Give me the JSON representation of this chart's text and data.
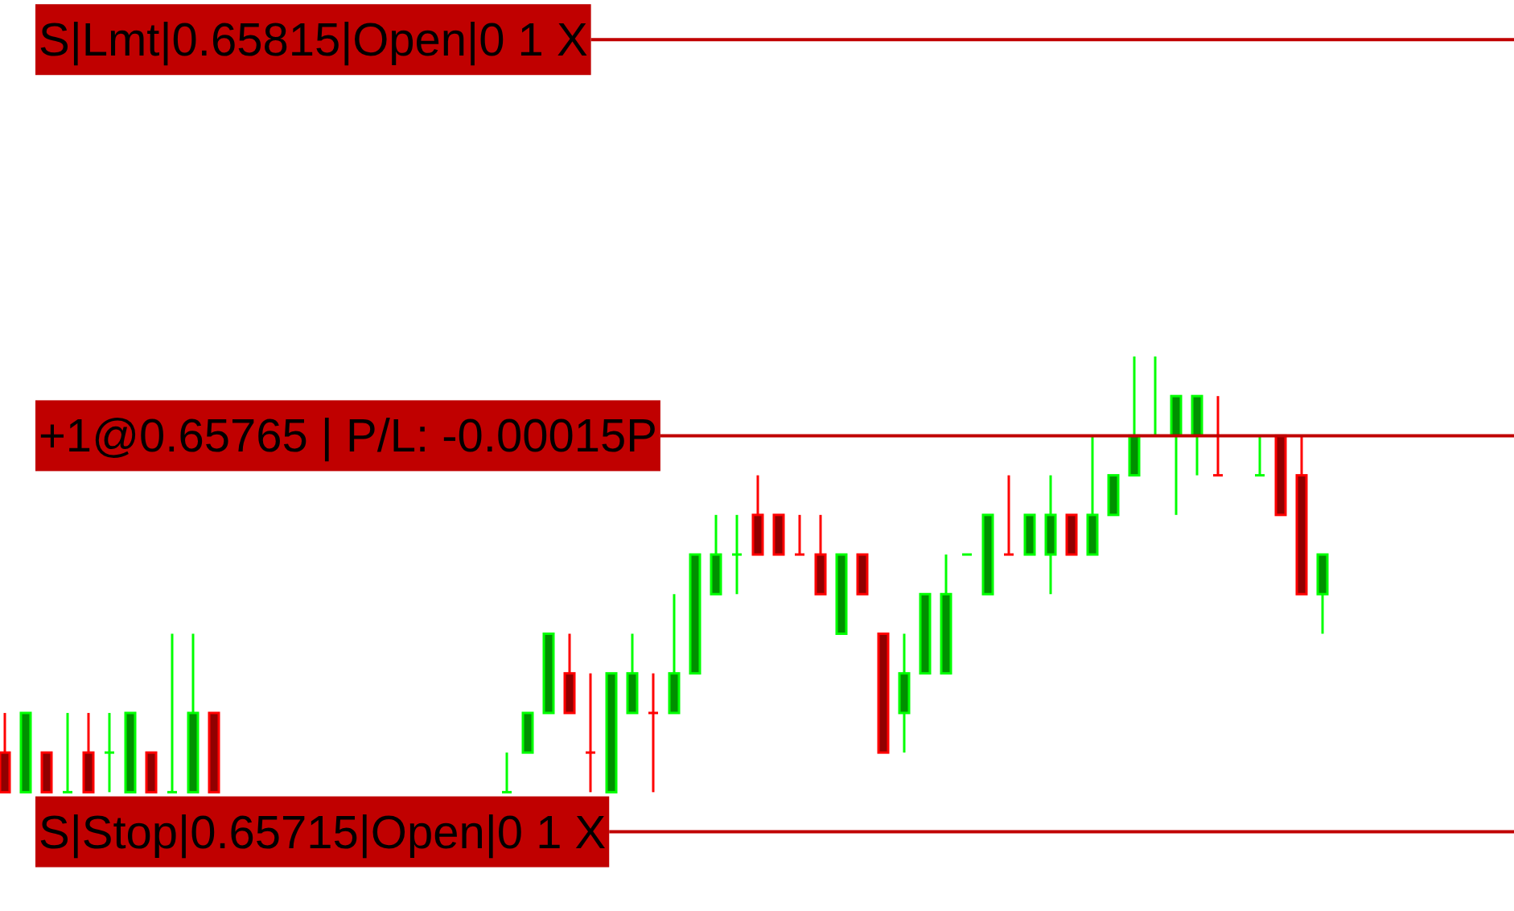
{
  "chart_data": {
    "type": "candlestick",
    "categories": [
      null,
      null,
      null,
      null,
      null,
      null,
      null,
      null,
      null,
      null,
      null,
      null,
      null,
      null,
      null,
      null,
      null,
      null,
      null,
      null,
      null,
      null,
      null,
      null,
      null,
      null,
      null,
      null,
      null,
      null,
      null,
      null,
      null,
      null,
      null,
      null,
      null,
      null,
      null,
      null,
      null,
      null,
      null,
      null,
      null,
      null,
      null,
      null,
      null,
      null,
      null,
      null,
      null,
      null,
      null,
      null,
      null,
      null,
      null,
      null,
      null,
      null,
      null,
      null
    ],
    "ohlc": [
      [
        0.65725,
        0.6573,
        0.6572,
        0.6572
      ],
      [
        0.6572,
        0.6573,
        0.6572,
        0.6573
      ],
      [
        0.65725,
        0.65725,
        0.6572,
        0.6572
      ],
      [
        0.6572,
        0.6573,
        0.6572,
        0.6572
      ],
      [
        0.65725,
        0.6573,
        0.6572,
        0.6572
      ],
      [
        0.65725,
        0.6573,
        0.6572,
        0.65725
      ],
      [
        0.6572,
        0.6573,
        0.6572,
        0.6573
      ],
      [
        0.65725,
        0.65725,
        0.6572,
        0.6572
      ],
      [
        0.6572,
        0.6574,
        0.6572,
        0.6572
      ],
      [
        0.6572,
        0.6574,
        0.6572,
        0.6573
      ],
      [
        0.6573,
        0.6573,
        0.6572,
        0.6572
      ],
      null,
      null,
      null,
      null,
      null,
      null,
      null,
      null,
      null,
      null,
      null,
      null,
      null,
      [
        0.6572,
        0.65725,
        0.6572,
        0.6572
      ],
      [
        0.65725,
        0.6573,
        0.65725,
        0.6573
      ],
      [
        0.6573,
        0.6574,
        0.6573,
        0.6574
      ],
      [
        0.65735,
        0.6574,
        0.6573,
        0.6573
      ],
      [
        0.65725,
        0.65735,
        0.6572,
        0.65725
      ],
      [
        0.6572,
        0.65735,
        0.6572,
        0.65735
      ],
      [
        0.6573,
        0.6574,
        0.6573,
        0.65735
      ],
      [
        0.6573,
        0.65735,
        0.6572,
        0.6573
      ],
      [
        0.6573,
        0.65745,
        0.6573,
        0.65735
      ],
      [
        0.65735,
        0.6575,
        0.65735,
        0.6575
      ],
      [
        0.65745,
        0.65755,
        0.65745,
        0.6575
      ],
      [
        0.6575,
        0.65755,
        0.65745,
        0.6575
      ],
      [
        0.65755,
        0.6576,
        0.6575,
        0.6575
      ],
      [
        0.65755,
        0.65755,
        0.6575,
        0.6575
      ],
      [
        0.6575,
        0.65755,
        0.6575,
        0.6575
      ],
      [
        0.6575,
        0.65755,
        0.65745,
        0.65745
      ],
      [
        0.6574,
        0.6575,
        0.6574,
        0.6575
      ],
      [
        0.6575,
        0.6575,
        0.65745,
        0.65745
      ],
      [
        0.6574,
        0.6574,
        0.65725,
        0.65725
      ],
      [
        0.6573,
        0.6574,
        0.65725,
        0.65735
      ],
      [
        0.65735,
        0.65745,
        0.65735,
        0.65745
      ],
      [
        0.65735,
        0.6575,
        0.65735,
        0.65745
      ],
      [
        0.6575,
        0.6575,
        0.6575,
        0.6575
      ],
      [
        0.65745,
        0.65755,
        0.65745,
        0.65755
      ],
      [
        0.6575,
        0.6576,
        0.6575,
        0.6575
      ],
      [
        0.6575,
        0.65755,
        0.6575,
        0.65755
      ],
      [
        0.6575,
        0.6576,
        0.65745,
        0.65755
      ],
      [
        0.65755,
        0.65755,
        0.6575,
        0.6575
      ],
      [
        0.6575,
        0.65765,
        0.6575,
        0.65755
      ],
      [
        0.65755,
        0.6576,
        0.65755,
        0.6576
      ],
      [
        0.6576,
        0.65775,
        0.6576,
        0.65765
      ],
      [
        0.65765,
        0.65775,
        0.65765,
        0.65765
      ],
      [
        0.65765,
        0.6577,
        0.65755,
        0.6577
      ],
      [
        0.65765,
        0.6577,
        0.6576,
        0.6577
      ],
      [
        0.6576,
        0.6577,
        0.6576,
        0.6576
      ],
      null,
      [
        0.6576,
        0.65765,
        0.6576,
        0.6576
      ],
      [
        0.65765,
        0.65765,
        0.65755,
        0.65755
      ],
      [
        0.6576,
        0.65765,
        0.65745,
        0.65745
      ],
      [
        0.65745,
        0.6575,
        0.6574,
        0.6575
      ]
    ],
    "colors": [
      "#ff0000",
      "#00ff00",
      "#ff0000",
      "#00ff00",
      "#ff0000",
      "#00ff00",
      "#00ff00",
      "#ff0000",
      "#00ff00",
      "#00ff00",
      "#ff0000",
      null,
      null,
      null,
      null,
      null,
      null,
      null,
      null,
      null,
      null,
      null,
      null,
      null,
      "#00ff00",
      "#00ff00",
      "#00ff00",
      "#ff0000",
      "#ff0000",
      "#00ff00",
      "#00ff00",
      "#ff0000",
      "#00ff00",
      "#00ff00",
      "#00ff00",
      "#00ff00",
      "#ff0000",
      "#ff0000",
      "#ff0000",
      "#ff0000",
      "#00ff00",
      "#ff0000",
      "#ff0000",
      "#00ff00",
      "#00ff00",
      "#00ff00",
      "#00ff00",
      "#00ff00",
      "#ff0000",
      "#00ff00",
      "#00ff00",
      "#ff0000",
      "#00ff00",
      "#00ff00",
      "#00ff00",
      "#00ff00",
      "#00ff00",
      "#00ff00",
      "#ff0000",
      null,
      "#00ff00",
      "#ff0000",
      "#ff0000",
      "#00ff00"
    ],
    "ylim": [
      0.65705,
      0.6582
    ],
    "ref_lines": [
      {
        "axis": "y",
        "value": 0.65815,
        "label": "S|Lmt|0.65815|Open|0 1 X",
        "color": "#c00000"
      },
      {
        "axis": "y",
        "value": 0.65765,
        "label": "+1@0.65765 | P/L: -0.00015P",
        "color": "#c00000"
      },
      {
        "axis": "y",
        "value": 0.65715,
        "label": "S|Stop|0.65715|Open|0 1 X",
        "color": "#c00000"
      }
    ]
  }
}
